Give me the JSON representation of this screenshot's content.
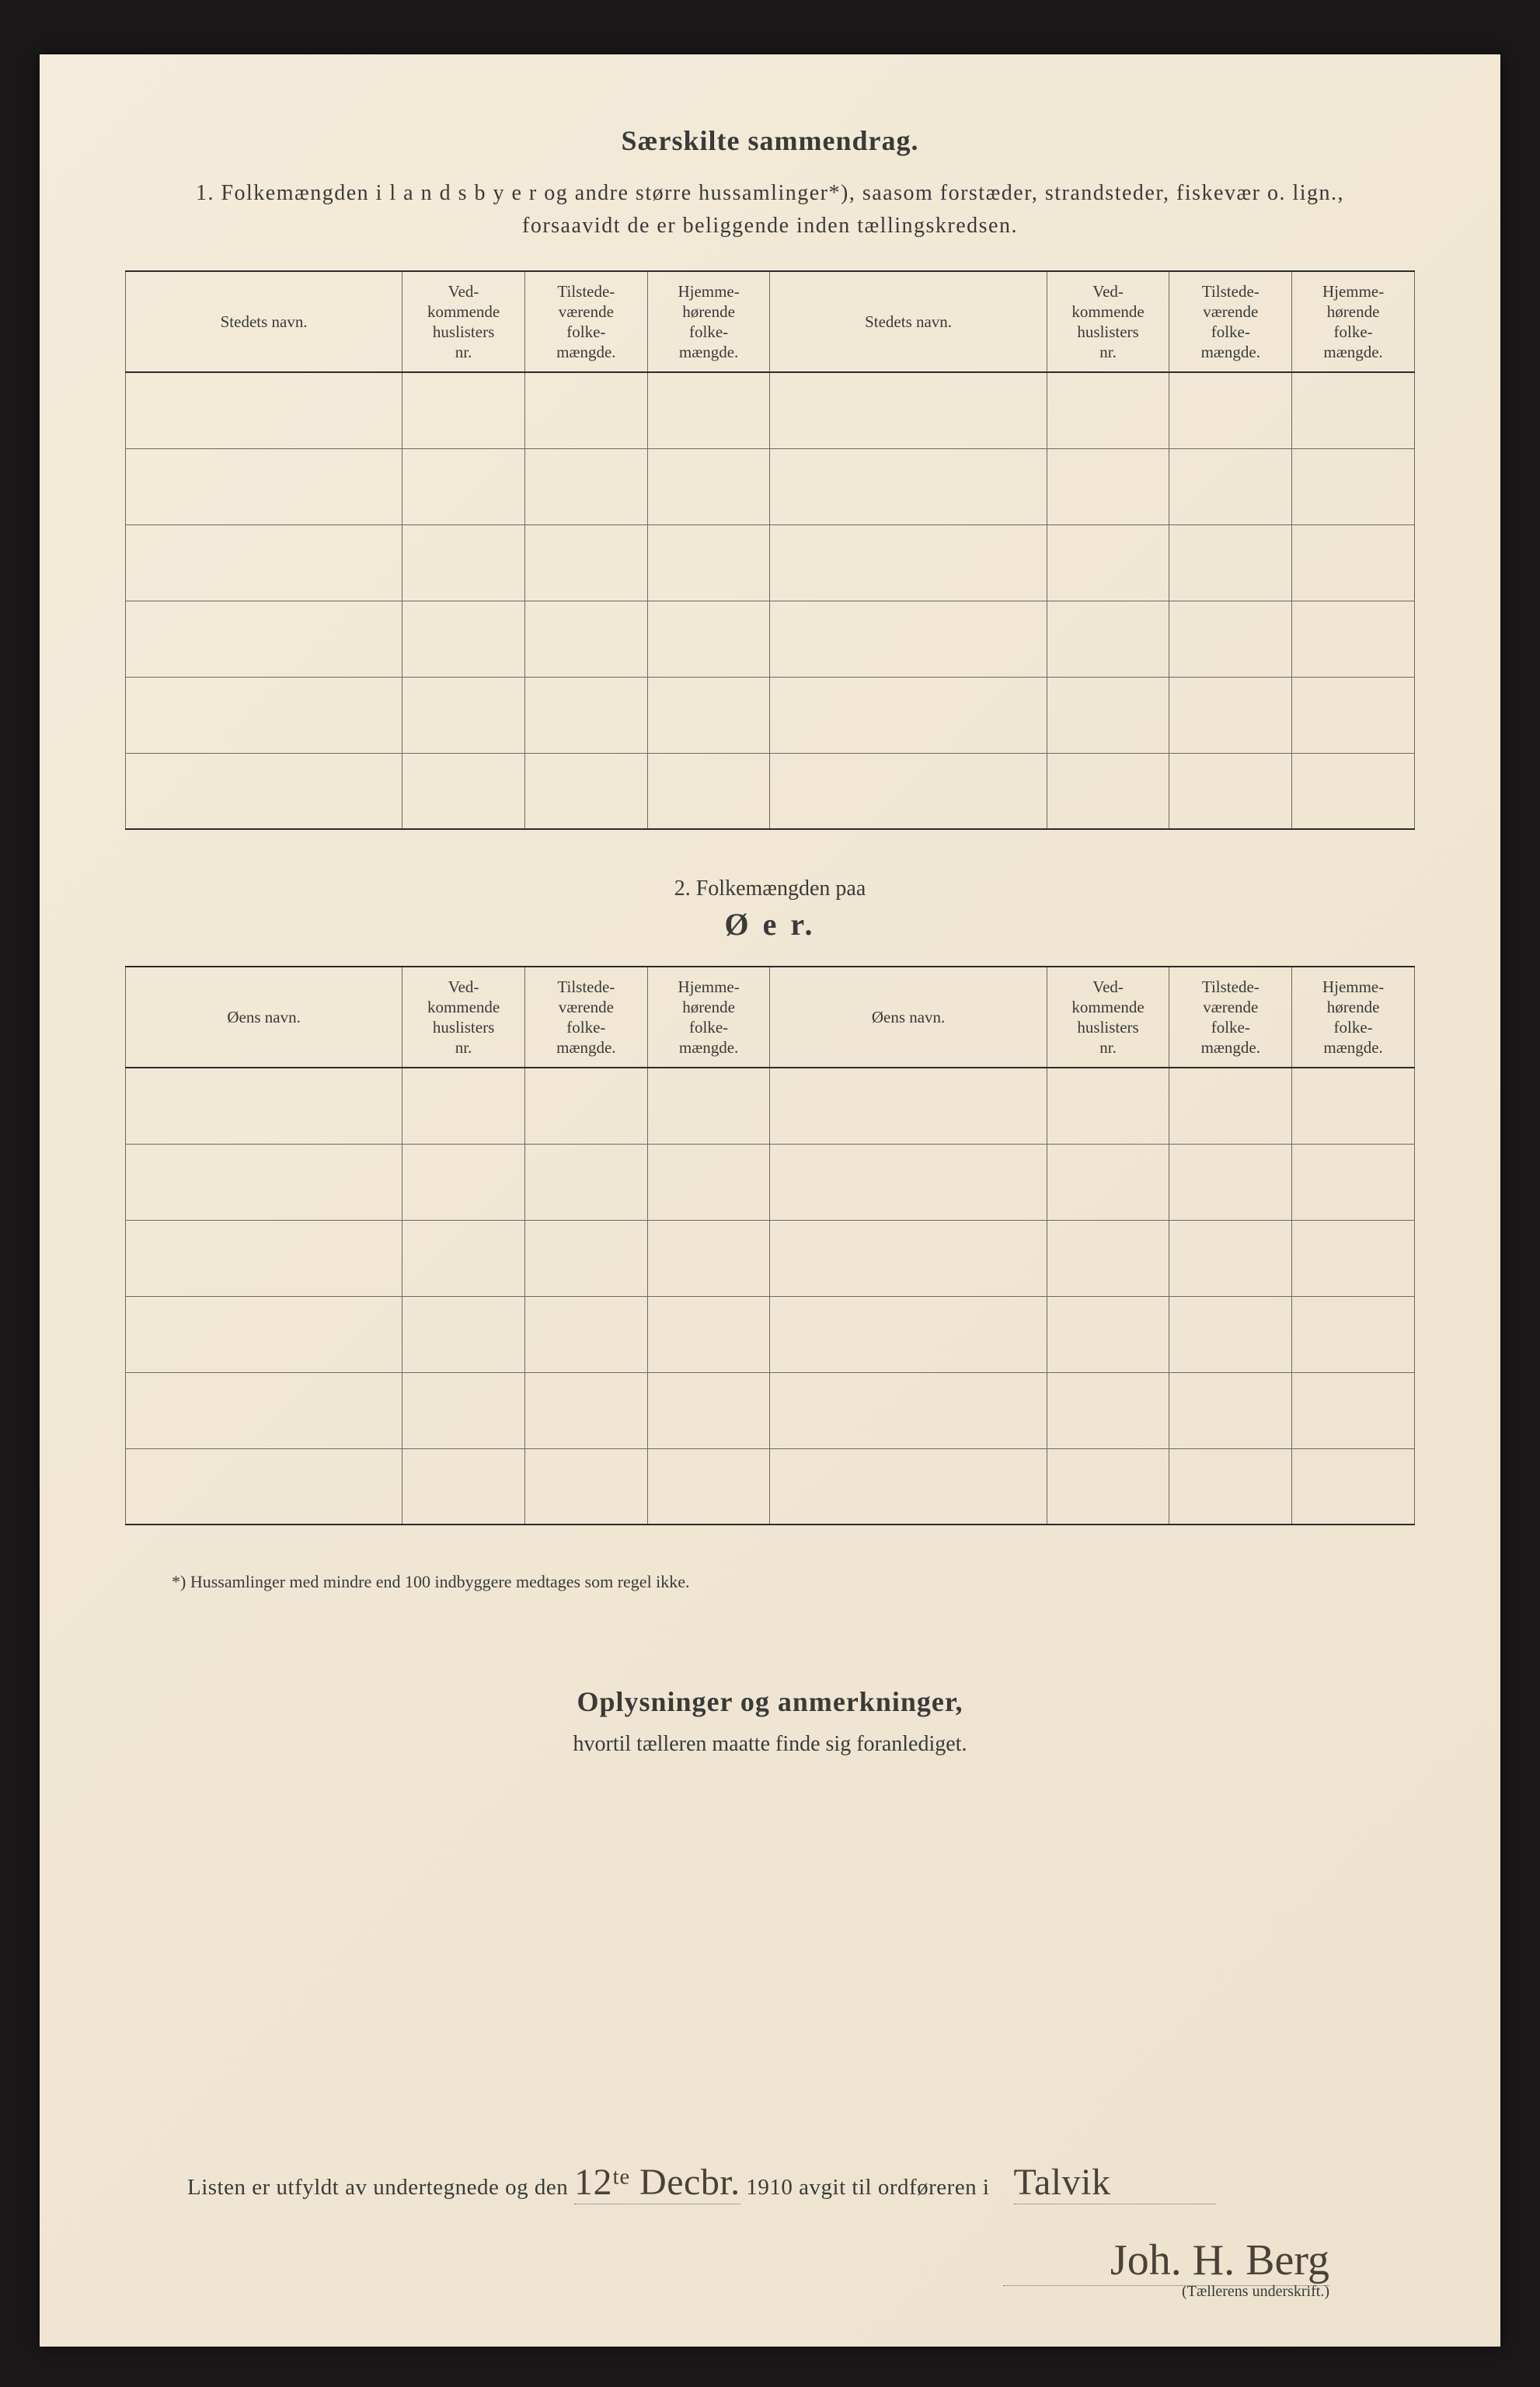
{
  "page_bg": "#f2e9d8",
  "outer_bg": "#1a1818",
  "text_color": "#3a3a38",
  "section1": {
    "title": "Særskilte sammendrag.",
    "intro_prefix": "1.   Folkemængden  i l a n d s b y e r  og andre større hussamlinger*),  saasom forstæder, strandsteder, fiskevær o. lign.,",
    "intro_line2": "forsaavidt de er beliggende inden tællingskredsen.",
    "columns": [
      "Stedets navn.",
      "Ved-\nkommende\nhuslisters\nnr.",
      "Tilstede-\nværende\nfolke-\nmængde.",
      "Hjemme-\nhørende\nfolke-\nmængde.",
      "Stedets navn.",
      "Ved-\nkommende\nhuslisters\nnr.",
      "Tilstede-\nværende\nfolke-\nmængde.",
      "Hjemme-\nhørende\nfolke-\nmængde."
    ],
    "row_count": 6
  },
  "section2": {
    "label": "2.    Folkemængden paa",
    "title": "Ø e r.",
    "columns": [
      "Øens navn.",
      "Ved-\nkommende\nhuslisters\nnr.",
      "Tilstede-\nværende\nfolke-\nmængde.",
      "Hjemme-\nhørende\nfolke-\nmængde.",
      "Øens navn.",
      "Ved-\nkommende\nhuslisters\nnr.",
      "Tilstede-\nværende\nfolke-\nmængde.",
      "Hjemme-\nhørende\nfolke-\nmængde."
    ],
    "row_count": 6
  },
  "footnote": "*) Hussamlinger med mindre end 100 indbyggere medtages som regel ikke.",
  "remarks": {
    "title": "Oplysninger og anmerkninger,",
    "sub": "hvortil tælleren maatte finde sig foranlediget."
  },
  "signature": {
    "line_prefix": "Listen er utfyldt av undertegnede og den ",
    "date_written": "12ᵗᵉ Decbr.",
    "year_print": "1910",
    "line_mid": " avgit til ordføreren i ",
    "place_written": "Talvik",
    "name_written": "Joh. H. Berg",
    "caption": "(Tællerens underskrift.)"
  }
}
